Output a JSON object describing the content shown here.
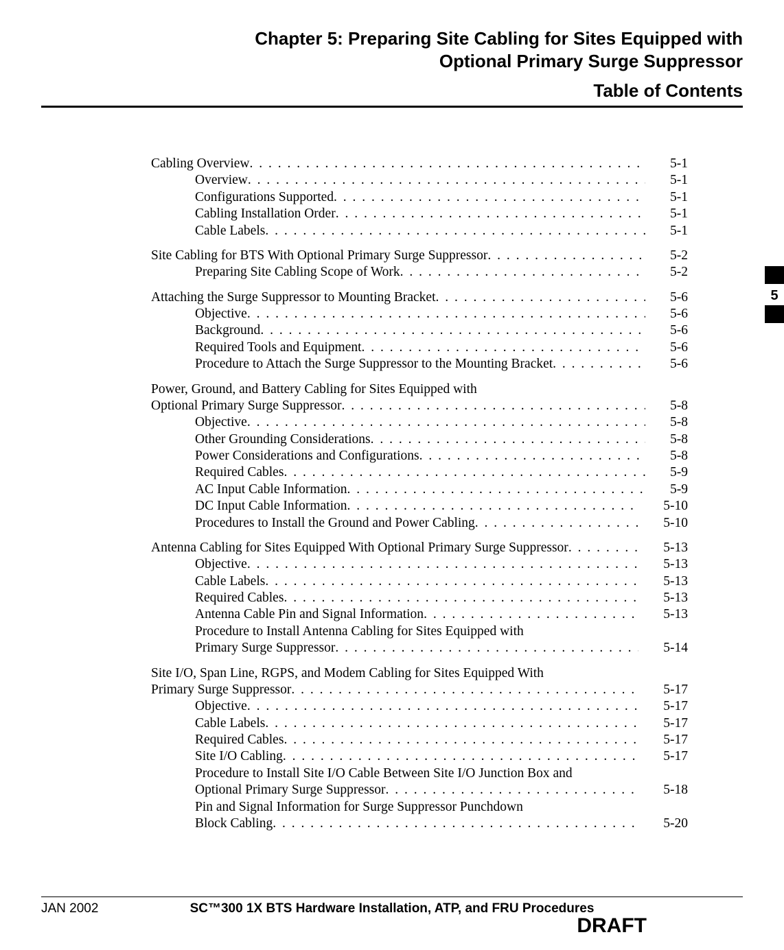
{
  "chapter_title": "Chapter 5: Preparing Site Cabling for Sites Equipped with Optional Primary Surge Suppressor",
  "toc_heading": "Table of Contents",
  "chapter_tab_number": "5",
  "footer": {
    "date": "JAN 2002",
    "title": "SC™300 1X BTS Hardware Installation, ATP, and FRU Procedures",
    "draft": "DRAFT"
  },
  "toc": [
    {
      "title": "Cabling Overview",
      "page": "5-1",
      "indent": 0
    },
    {
      "title": "Overview",
      "page": "5-1",
      "indent": 1
    },
    {
      "title": "Configurations Supported",
      "page": "5-1",
      "indent": 1
    },
    {
      "title": "Cabling Installation Order",
      "page": "5-1",
      "indent": 1
    },
    {
      "title": "Cable Labels",
      "page": "5-1",
      "indent": 1
    },
    {
      "title": "Site Cabling for BTS With Optional Primary Surge Suppressor",
      "page": "5-2",
      "indent": 0
    },
    {
      "title": "Preparing Site Cabling Scope of Work",
      "page": "5-2",
      "indent": 1
    },
    {
      "title": "Attaching the Surge Suppressor to Mounting Bracket",
      "page": "5-6",
      "indent": 0
    },
    {
      "title": "Objective",
      "page": "5-6",
      "indent": 1
    },
    {
      "title": "Background",
      "page": "5-6",
      "indent": 1
    },
    {
      "title": "Required Tools and Equipment",
      "page": "5-6",
      "indent": 1
    },
    {
      "title": "Procedure to Attach the Surge Suppressor to the Mounting Bracket",
      "page": "5-6",
      "indent": 1
    },
    {
      "title_line1": "Power, Ground, and Battery Cabling for Sites Equipped with",
      "title_line2": "Optional Primary Surge Suppressor",
      "page": "5-8",
      "indent": 0,
      "multiline": true
    },
    {
      "title": "Objective",
      "page": "5-8",
      "indent": 1
    },
    {
      "title": "Other Grounding Considerations",
      "page": "5-8",
      "indent": 1
    },
    {
      "title": "Power Considerations and Configurations",
      "page": "5-8",
      "indent": 1
    },
    {
      "title": "Required Cables",
      "page": "5-9",
      "indent": 1
    },
    {
      "title": "AC Input Cable Information",
      "page": "5-9",
      "indent": 1
    },
    {
      "title": "DC Input Cable Information",
      "page": "5-10",
      "indent": 1
    },
    {
      "title": "Procedures to Install the Ground and Power Cabling",
      "page": "5-10",
      "indent": 1
    },
    {
      "title": "Antenna Cabling for Sites Equipped With Optional Primary Surge Suppressor",
      "page": "5-13",
      "indent": 0
    },
    {
      "title": "Objective",
      "page": "5-13",
      "indent": 1
    },
    {
      "title": "Cable Labels",
      "page": "5-13",
      "indent": 1
    },
    {
      "title": "Required Cables",
      "page": "5-13",
      "indent": 1
    },
    {
      "title": "Antenna Cable Pin and Signal Information",
      "page": "5-13",
      "indent": 1
    },
    {
      "title_line1": "Procedure to Install Antenna Cabling for Sites Equipped with",
      "title_line2": "Primary Surge Suppressor",
      "page": "5-14",
      "indent": 1,
      "multiline": true
    },
    {
      "title_line1": "Site I/O, Span Line, RGPS, and Modem Cabling for Sites Equipped With",
      "title_line2": "Primary Surge Suppressor",
      "page": "5-17",
      "indent": 0,
      "multiline": true
    },
    {
      "title": "Objective",
      "page": "5-17",
      "indent": 1
    },
    {
      "title": "Cable Labels",
      "page": "5-17",
      "indent": 1
    },
    {
      "title": "Required Cables",
      "page": "5-17",
      "indent": 1
    },
    {
      "title": "Site I/O Cabling",
      "page": "5-17",
      "indent": 1
    },
    {
      "title_line1": "Procedure to Install Site I/O Cable Between Site I/O Junction Box and",
      "title_line2": "Optional Primary Surge Suppressor",
      "page": "5-18",
      "indent": 1,
      "multiline": true
    },
    {
      "title_line1": "Pin and Signal Information for Surge Suppressor Punchdown",
      "title_line2": "Block Cabling",
      "page": "5-20",
      "indent": 1,
      "multiline": true
    }
  ]
}
